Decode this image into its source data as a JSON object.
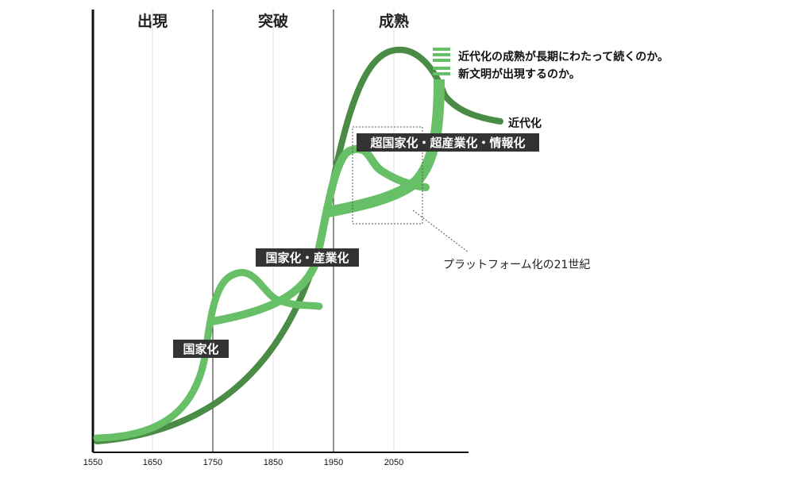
{
  "eras": [
    "出現",
    "突破",
    "成熟"
  ],
  "x_ticks": [
    "1550",
    "1650",
    "1750",
    "1850",
    "1950",
    "2050"
  ],
  "legend": [
    "近代化の成熟が長期にわたって続くのか。",
    "新文明が出現するのか。"
  ],
  "curve_labels": {
    "modernization": "近代化"
  },
  "stage_tags": [
    "国家化",
    "国家化・産業化",
    "超国家化・超産業化・情報化"
  ],
  "callout": "プラットフォーム化の21世紀",
  "colors": {
    "dark_green": "#4a8c45",
    "light_green": "#67c067",
    "tag_bg": "#333333",
    "axis": "#111111"
  }
}
